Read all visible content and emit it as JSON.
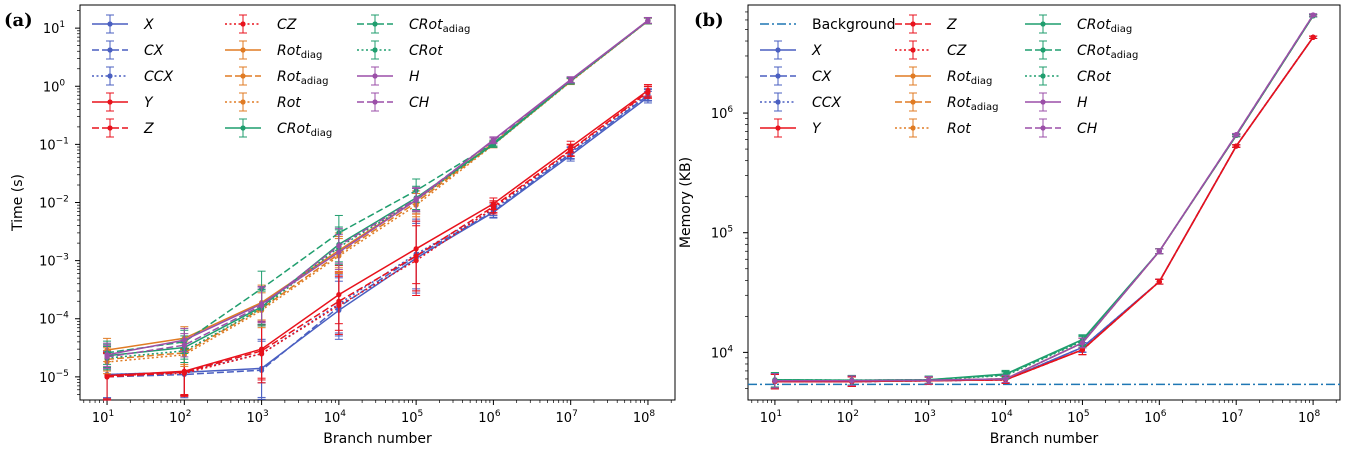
{
  "chart_data": [
    {
      "type": "line",
      "panel_label": "(a)",
      "xlabel": "Branch number",
      "ylabel": "Time (s)",
      "x": [
        10,
        100,
        1000,
        10000,
        100000,
        1000000,
        10000000,
        100000000
      ],
      "x_tick_labels": [
        [
          "10",
          "1"
        ],
        [
          "10",
          "2"
        ],
        [
          "10",
          "3"
        ],
        [
          "10",
          "4"
        ],
        [
          "10",
          "5"
        ],
        [
          "10",
          "6"
        ],
        [
          "10",
          "7"
        ],
        [
          "10",
          "8"
        ]
      ],
      "y_tick_labels": [
        [
          "10",
          "−5"
        ],
        [
          "10",
          "−4"
        ],
        [
          "10",
          "−3"
        ],
        [
          "10",
          "−2"
        ],
        [
          "10",
          "−1"
        ],
        [
          "10",
          "0"
        ],
        [
          "10",
          "1"
        ]
      ],
      "xscale": "log",
      "yscale": "log",
      "xlim": [
        10,
        100000000
      ],
      "ylim": [
        4e-06,
        25
      ],
      "grid": false,
      "legend_placement": "top-left",
      "series": [
        {
          "name": "X",
          "subscript": "",
          "color": "#4a5fc1",
          "dash": "solid",
          "values": [
            1.1e-05,
            1.2e-05,
            1.4e-05,
            0.00014,
            0.0011,
            0.0068,
            0.065,
            0.65
          ],
          "err": [
            0.4,
            0.4,
            0.5,
            0.5,
            0.6,
            0.1,
            0.1,
            0.1
          ]
        },
        {
          "name": "CX",
          "subscript": "",
          "color": "#4a5fc1",
          "dash": "dashed",
          "values": [
            1e-05,
            1.1e-05,
            1.3e-05,
            0.00016,
            0.0012,
            0.007,
            0.07,
            0.7
          ],
          "err": [
            0.4,
            0.4,
            0.5,
            0.5,
            0.6,
            0.1,
            0.1,
            0.1
          ]
        },
        {
          "name": "CCX",
          "subscript": "",
          "color": "#4a5fc1",
          "dash": "dotted",
          "values": [
            1.1e-05,
            1.2e-05,
            2.5e-05,
            0.00018,
            0.0013,
            0.0075,
            0.072,
            0.72
          ],
          "err": [
            0.4,
            0.4,
            0.5,
            0.5,
            0.6,
            0.1,
            0.1,
            0.1
          ]
        },
        {
          "name": "Y",
          "subscript": "",
          "color": "#e8121c",
          "dash": "solid",
          "values": [
            1.05e-05,
            1.25e-05,
            3e-05,
            0.00026,
            0.0016,
            0.0095,
            0.09,
            0.85
          ],
          "err": [
            0.4,
            0.4,
            0.5,
            0.5,
            0.6,
            0.1,
            0.1,
            0.1
          ]
        },
        {
          "name": "Z",
          "subscript": "",
          "color": "#e8121c",
          "dash": "dashed",
          "values": [
            1e-05,
            1.2e-05,
            2.8e-05,
            0.0002,
            0.0012,
            0.0085,
            0.08,
            0.8
          ],
          "err": [
            0.4,
            0.4,
            0.5,
            0.5,
            0.6,
            0.1,
            0.1,
            0.1
          ]
        },
        {
          "name": "CZ",
          "subscript": "",
          "color": "#e8121c",
          "dash": "dotted",
          "values": [
            1.05e-05,
            1.15e-05,
            2.5e-05,
            0.00017,
            0.001,
            0.008,
            0.078,
            0.78
          ],
          "err": [
            0.4,
            0.4,
            0.5,
            0.5,
            0.6,
            0.1,
            0.1,
            0.1
          ]
        },
        {
          "name": "Rot",
          "subscript": "diag",
          "color": "#e07b23",
          "dash": "solid",
          "values": [
            2.9e-05,
            4.6e-05,
            0.00019,
            0.0015,
            0.011,
            0.105,
            1.25,
            13.5
          ],
          "err": [
            0.2,
            0.2,
            0.3,
            0.3,
            0.2,
            0.05,
            0.05,
            0.05
          ]
        },
        {
          "name": "Rot",
          "subscript": "adiag",
          "color": "#e07b23",
          "dash": "dashed",
          "values": [
            2e-05,
            2.6e-05,
            0.00015,
            0.0013,
            0.01,
            0.1,
            1.22,
            13.3
          ],
          "err": [
            0.2,
            0.2,
            0.3,
            0.3,
            0.2,
            0.05,
            0.05,
            0.05
          ]
        },
        {
          "name": "Rot",
          "subscript": "",
          "color": "#e07b23",
          "dash": "dotted",
          "values": [
            1.8e-05,
            2.4e-05,
            0.00014,
            0.0012,
            0.009,
            0.098,
            1.2,
            13.2
          ],
          "err": [
            0.2,
            0.2,
            0.3,
            0.3,
            0.2,
            0.05,
            0.05,
            0.05
          ]
        },
        {
          "name": "CRot",
          "subscript": "diag",
          "color": "#1f9e6e",
          "dash": "solid",
          "values": [
            2.3e-05,
            3.2e-05,
            0.00016,
            0.0019,
            0.012,
            0.1,
            1.25,
            13.4
          ],
          "err": [
            0.2,
            0.2,
            0.3,
            0.3,
            0.2,
            0.05,
            0.05,
            0.05
          ]
        },
        {
          "name": "CRot",
          "subscript": "adiag",
          "color": "#1f9e6e",
          "dash": "dashed",
          "values": [
            2.6e-05,
            4e-05,
            0.00033,
            0.003,
            0.016,
            0.105,
            1.25,
            13.5
          ],
          "err": [
            0.2,
            0.2,
            0.3,
            0.3,
            0.2,
            0.05,
            0.05,
            0.05
          ]
        },
        {
          "name": "CRot",
          "subscript": "",
          "color": "#1f9e6e",
          "dash": "dotted",
          "values": [
            2.1e-05,
            2.8e-05,
            0.00015,
            0.0017,
            0.011,
            0.1,
            1.22,
            13.3
          ],
          "err": [
            0.2,
            0.2,
            0.3,
            0.3,
            0.2,
            0.05,
            0.05,
            0.05
          ]
        },
        {
          "name": "H",
          "subscript": "",
          "color": "#9b4fa8",
          "dash": "solid",
          "values": [
            2.4e-05,
            4.3e-05,
            0.00018,
            0.0014,
            0.011,
            0.12,
            1.3,
            13.6
          ],
          "err": [
            0.2,
            0.2,
            0.3,
            0.3,
            0.2,
            0.05,
            0.05,
            0.05
          ]
        },
        {
          "name": "CH",
          "subscript": "",
          "color": "#9b4fa8",
          "dash": "dashed",
          "values": [
            2.2e-05,
            3.5e-05,
            0.00017,
            0.0018,
            0.0115,
            0.115,
            1.28,
            13.5
          ],
          "err": [
            0.2,
            0.2,
            0.3,
            0.3,
            0.2,
            0.05,
            0.05,
            0.05
          ]
        }
      ]
    },
    {
      "type": "line",
      "panel_label": "(b)",
      "xlabel": "Branch number",
      "ylabel": "Memory (KB)",
      "x": [
        10,
        100,
        1000,
        10000,
        100000,
        1000000,
        10000000,
        100000000
      ],
      "x_tick_labels": [
        [
          "10",
          "1"
        ],
        [
          "10",
          "2"
        ],
        [
          "10",
          "3"
        ],
        [
          "10",
          "4"
        ],
        [
          "10",
          "5"
        ],
        [
          "10",
          "6"
        ],
        [
          "10",
          "7"
        ],
        [
          "10",
          "8"
        ]
      ],
      "y_tick_labels": [
        [
          "10",
          "4"
        ],
        [
          "10",
          "5"
        ],
        [
          "10",
          "6"
        ]
      ],
      "xscale": "log",
      "yscale": "log",
      "xlim": [
        10,
        100000000
      ],
      "ylim": [
        4000,
        8000000
      ],
      "grid": false,
      "legend_placement": "top-left",
      "background": {
        "name": "Background",
        "subscript": "",
        "color": "#1f77b4",
        "dash": "dashdot",
        "value": 5400
      },
      "series": [
        {
          "name": "X",
          "subscript": "",
          "color": "#4a5fc1",
          "dash": "solid",
          "values": [
            5700,
            5700,
            5800,
            5900,
            11000,
            39000,
            530000,
            4300000
          ],
          "err": [
            0.06,
            0.04,
            0.03,
            0.03,
            0.04,
            0.02,
            0.01,
            0.01
          ]
        },
        {
          "name": "CX",
          "subscript": "",
          "color": "#4a5fc1",
          "dash": "dashed",
          "values": [
            5700,
            5700,
            5800,
            5900,
            11000,
            39000,
            530000,
            4300000
          ],
          "err": [
            0.06,
            0.04,
            0.03,
            0.03,
            0.04,
            0.02,
            0.01,
            0.01
          ]
        },
        {
          "name": "CCX",
          "subscript": "",
          "color": "#4a5fc1",
          "dash": "dotted",
          "values": [
            5700,
            5700,
            5800,
            5900,
            11000,
            39000,
            530000,
            4300000
          ],
          "err": [
            0.06,
            0.04,
            0.03,
            0.03,
            0.04,
            0.02,
            0.01,
            0.01
          ]
        },
        {
          "name": "Y",
          "subscript": "",
          "color": "#e8121c",
          "dash": "solid",
          "values": [
            5700,
            5700,
            5800,
            5900,
            10500,
            39000,
            530000,
            4300000
          ],
          "err": [
            0.06,
            0.04,
            0.03,
            0.03,
            0.04,
            0.02,
            0.01,
            0.01
          ]
        },
        {
          "name": "Z",
          "subscript": "",
          "color": "#e8121c",
          "dash": "dashed",
          "values": [
            5700,
            5700,
            5800,
            5900,
            10500,
            39000,
            530000,
            4300000
          ],
          "err": [
            0.06,
            0.04,
            0.03,
            0.03,
            0.04,
            0.02,
            0.01,
            0.01
          ]
        },
        {
          "name": "CZ",
          "subscript": "",
          "color": "#e8121c",
          "dash": "dotted",
          "values": [
            5700,
            5700,
            5800,
            5900,
            10500,
            39000,
            530000,
            4300000
          ],
          "err": [
            0.06,
            0.04,
            0.03,
            0.03,
            0.04,
            0.02,
            0.01,
            0.01
          ]
        },
        {
          "name": "Rot",
          "subscript": "diag",
          "color": "#e07b23",
          "dash": "solid",
          "values": [
            5800,
            5800,
            5850,
            6000,
            12000,
            70000,
            650000,
            6500000
          ],
          "err": [
            0.06,
            0.04,
            0.03,
            0.03,
            0.04,
            0.02,
            0.01,
            0.01
          ]
        },
        {
          "name": "Rot",
          "subscript": "adiag",
          "color": "#e07b23",
          "dash": "dashed",
          "values": [
            5800,
            5800,
            5850,
            6000,
            12000,
            70000,
            650000,
            6500000
          ],
          "err": [
            0.06,
            0.04,
            0.03,
            0.03,
            0.04,
            0.02,
            0.01,
            0.01
          ]
        },
        {
          "name": "Rot",
          "subscript": "",
          "color": "#e07b23",
          "dash": "dotted",
          "values": [
            5800,
            5800,
            5850,
            6000,
            12000,
            70000,
            650000,
            6500000
          ],
          "err": [
            0.06,
            0.04,
            0.03,
            0.03,
            0.04,
            0.02,
            0.01,
            0.01
          ]
        },
        {
          "name": "CRot",
          "subscript": "diag",
          "color": "#1f9e6e",
          "dash": "solid",
          "values": [
            5900,
            5850,
            5900,
            6600,
            12800,
            70000,
            650000,
            6500000
          ],
          "err": [
            0.06,
            0.04,
            0.03,
            0.03,
            0.04,
            0.02,
            0.01,
            0.01
          ]
        },
        {
          "name": "CRot",
          "subscript": "adiag",
          "color": "#1f9e6e",
          "dash": "dashed",
          "values": [
            5900,
            5850,
            5900,
            6500,
            12600,
            70000,
            650000,
            6500000
          ],
          "err": [
            0.06,
            0.04,
            0.03,
            0.03,
            0.04,
            0.02,
            0.01,
            0.01
          ]
        },
        {
          "name": "CRot",
          "subscript": "",
          "color": "#1f9e6e",
          "dash": "dotted",
          "values": [
            5900,
            5850,
            5900,
            6400,
            12400,
            70000,
            650000,
            6500000
          ],
          "err": [
            0.06,
            0.04,
            0.03,
            0.03,
            0.04,
            0.02,
            0.01,
            0.01
          ]
        },
        {
          "name": "H",
          "subscript": "",
          "color": "#9b4fa8",
          "dash": "solid",
          "values": [
            5800,
            5800,
            5850,
            6000,
            12000,
            70000,
            660000,
            6600000
          ],
          "err": [
            0.06,
            0.04,
            0.03,
            0.03,
            0.04,
            0.02,
            0.01,
            0.01
          ]
        },
        {
          "name": "CH",
          "subscript": "",
          "color": "#9b4fa8",
          "dash": "dashed",
          "values": [
            5800,
            5800,
            5850,
            6000,
            12000,
            70000,
            660000,
            6600000
          ],
          "err": [
            0.06,
            0.04,
            0.03,
            0.03,
            0.04,
            0.02,
            0.01,
            0.01
          ]
        }
      ]
    }
  ]
}
